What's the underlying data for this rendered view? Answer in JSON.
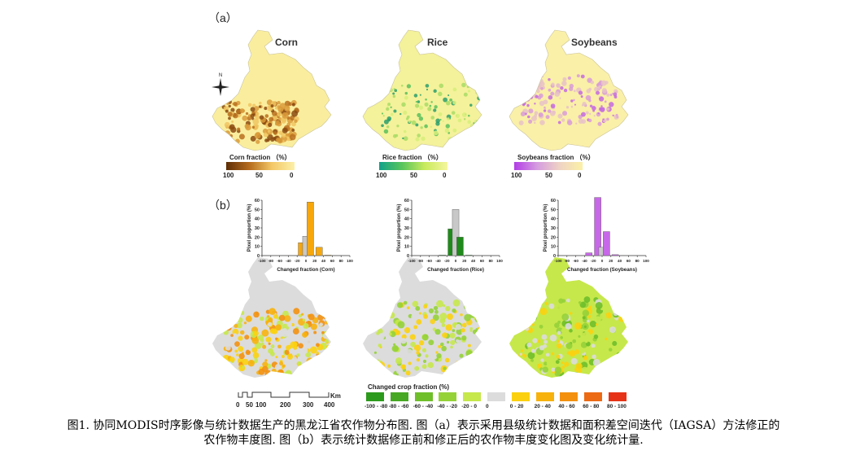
{
  "panel_a": {
    "label": "（a）",
    "maps": [
      {
        "title": "Corn",
        "legend_title": "Corn fraction （%）",
        "ticks": [
          "100",
          "50",
          "0"
        ],
        "gradient": [
          "#5e2e05",
          "#b46a1c",
          "#f3c766",
          "#fbf0a6"
        ]
      },
      {
        "title": "Rice",
        "legend_title": "Rice fraction （%）",
        "ticks": [
          "100",
          "50",
          "0"
        ],
        "gradient": [
          "#11a28a",
          "#58c45c",
          "#c8ea5d",
          "#f4f69c"
        ]
      },
      {
        "title": "Soybeans",
        "legend_title": "Soybeans fraction （%）",
        "ticks": [
          "100",
          "50",
          "0"
        ],
        "gradient": [
          "#b23de6",
          "#d59ce0",
          "#efd3c4",
          "#fbf1a6"
        ]
      }
    ],
    "compass": "N"
  },
  "panel_b": {
    "label": "（b）",
    "histograms": [
      {
        "name": "corn-histogram",
        "xlabel": "Changed fraction (Corn)",
        "ylabel": "Pixel proportion (%)",
        "color": "#f6a70c"
      },
      {
        "name": "rice-histogram",
        "xlabel": "Changed fraction (Rice)",
        "ylabel": "Pixel proportion (%)",
        "color": "#1e8a1a"
      },
      {
        "name": "soybeans-histogram",
        "xlabel": "Changed fraction (Soybeans)",
        "ylabel": "Pixel proportion (%)",
        "color": "#c768e8"
      }
    ],
    "x_ticks": [
      "-100",
      "-80",
      "-60",
      "-40",
      "-20",
      "0",
      "20",
      "40",
      "60",
      "80",
      "100"
    ],
    "y_ticks": [
      "0",
      "10",
      "20",
      "30",
      "40",
      "50",
      "60"
    ],
    "scale_bar": {
      "unit": "Km",
      "ticks": [
        "0",
        "50",
        "100",
        "200",
        "300",
        "400"
      ]
    },
    "legend": {
      "title": "Changed crop fraction (%)",
      "items": [
        {
          "label": "-100 - -80",
          "color": "#2c9a1c"
        },
        {
          "label": "-80 - -60",
          "color": "#47a823"
        },
        {
          "label": "-60 - -40",
          "color": "#6fbf2b"
        },
        {
          "label": "-40 - -20",
          "color": "#95d238"
        },
        {
          "label": "-20 - 0",
          "color": "#c6e84b"
        },
        {
          "label": "0",
          "color": "#dcdcdc"
        },
        {
          "label": "0 - 20",
          "color": "#fbd10f"
        },
        {
          "label": "20 - 40",
          "color": "#f7b20e"
        },
        {
          "label": "40 - 60",
          "color": "#f3910f"
        },
        {
          "label": "60 - 80",
          "color": "#ec6a14"
        },
        {
          "label": "80 - 100",
          "color": "#e63317"
        }
      ]
    }
  },
  "chart_data": [
    {
      "type": "bar",
      "title": "",
      "xlabel": "Changed fraction (Corn)",
      "ylabel": "Pixel proportion (%)",
      "categories": [
        "-100--80",
        "-80--60",
        "-60--40",
        "-40--20",
        "-20-0",
        "0",
        "0-20",
        "20-40",
        "40-60",
        "60-80",
        "80-100"
      ],
      "values": [
        0,
        0,
        0,
        0,
        14,
        21,
        58,
        9,
        0.5,
        0,
        0
      ],
      "ylim": [
        0,
        60
      ]
    },
    {
      "type": "bar",
      "title": "",
      "xlabel": "Changed fraction (Rice)",
      "ylabel": "Pixel proportion (%)",
      "categories": [
        "-100--80",
        "-80--60",
        "-60--40",
        "-40--20",
        "-20-0",
        "0",
        "0-20",
        "20-40",
        "40-60",
        "60-80",
        "80-100"
      ],
      "values": [
        0,
        0,
        0,
        0.5,
        29,
        50,
        20,
        0.5,
        0,
        0,
        0
      ],
      "ylim": [
        0,
        60
      ]
    },
    {
      "type": "bar",
      "title": "",
      "xlabel": "Changed fraction (Soybeans)",
      "ylabel": "Pixel proportion (%)",
      "categories": [
        "-100--80",
        "-80--60",
        "-60--40",
        "-40--20",
        "-20-0",
        "0",
        "0-20",
        "20-40",
        "40-60",
        "60-80",
        "80-100"
      ],
      "values": [
        0,
        0,
        0,
        3,
        63,
        9,
        26,
        1,
        0,
        0,
        0
      ],
      "ylim": [
        0,
        60
      ]
    }
  ],
  "caption": {
    "line1": "图1. 协同MODIS时序影像与统计数据生产的黑龙江省农作物分布图. 图（a）表示采用县级统计数据和面积差空间迭代（IAGSA）方法修正的",
    "line2": "农作物丰度图. 图（b）表示统计数据修正前和修正后的农作物丰度变化图及变化统计量."
  }
}
